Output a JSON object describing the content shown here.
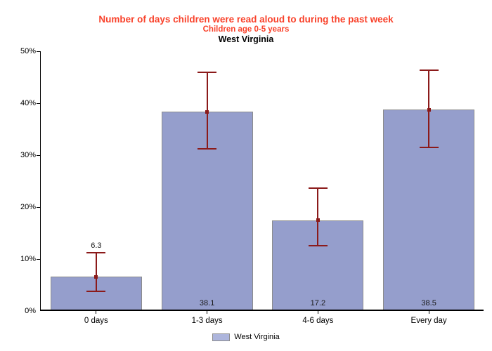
{
  "header": {
    "title": "Number of days children were read aloud to during the past week",
    "subtitle": "Children age 0-5 years",
    "region": "West Virginia"
  },
  "colors": {
    "title_text": "#F9422B",
    "bar_fill": "#959ECC",
    "bar_border": "#8C8C8C",
    "error_bar": "#8B1A1A",
    "axis": "#000000",
    "legend_swatch": "#ADB5DC"
  },
  "chart_data": {
    "type": "bar",
    "title": "Number of days children were read aloud to during the past week",
    "subtitle": "Children age 0-5 years",
    "region_line": "West Virginia",
    "categories": [
      "0 days",
      "1-3 days",
      "4-6 days",
      "Every day"
    ],
    "series": [
      {
        "name": "West Virginia",
        "values": [
          6.3,
          38.1,
          17.2,
          38.5
        ],
        "ci_low": [
          3.5,
          30.9,
          12.3,
          31.2
        ],
        "ci_high": [
          11.0,
          45.7,
          23.4,
          46.1
        ]
      }
    ],
    "value_labels": [
      "6.3",
      "38.1",
      "17.2",
      "38.5"
    ],
    "label_positions": [
      "above",
      "inside",
      "inside",
      "inside"
    ],
    "xlabel": "",
    "ylabel": "",
    "ylim": [
      0,
      50
    ],
    "ytick_labels": [
      "0%",
      "10%",
      "20%",
      "30%",
      "40%",
      "50%"
    ],
    "grid": false,
    "error_bars": true,
    "legend": {
      "label": "West Virginia",
      "position": "bottom-center"
    }
  }
}
